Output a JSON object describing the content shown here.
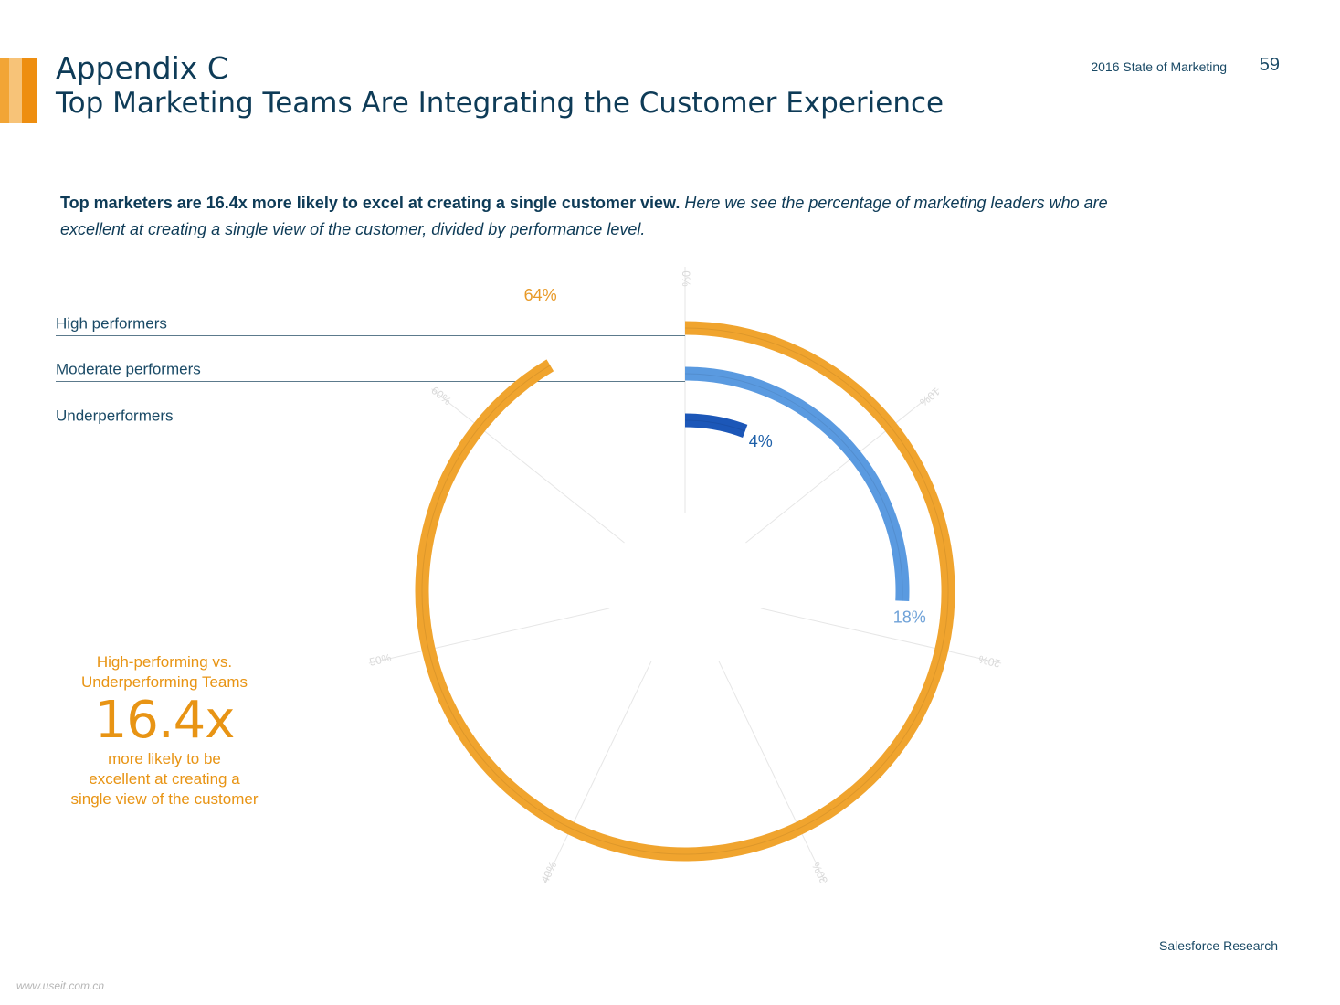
{
  "header": {
    "title": "Appendix C",
    "subtitle": "Top Marketing Teams Are Integrating the Customer Experience",
    "report_name": "2016 State of Marketing",
    "page_number": "59"
  },
  "intro": {
    "bold": "Top marketers are 16.4x more likely to excel at creating a single customer view.",
    "italic": "Here we see the percentage of marketing leaders who are excellent at creating a single view of the customer, divided by performance level."
  },
  "callout": {
    "heading_line1": "High-performing vs.",
    "heading_line2": "Underperforming Teams",
    "big_value": "16.4x",
    "desc_line1": "more likely to be",
    "desc_line2": "excellent at creating a",
    "desc_line3": "single view of the customer"
  },
  "chart_data": {
    "type": "radial-bar",
    "axis_ticks": [
      "0%",
      "10%",
      "20%",
      "30%",
      "40%",
      "50%",
      "60%"
    ],
    "axis_range": [
      0,
      70
    ],
    "categories": [
      "High performers",
      "Moderate performers",
      "Underperformers"
    ],
    "values": [
      64,
      18,
      4
    ],
    "value_labels": [
      "64%",
      "18%",
      "4%"
    ],
    "colors": [
      "#f0a42e",
      "#5a9ae0",
      "#1c57b8"
    ],
    "label_colors": [
      "#e89a28",
      "#6fa2d8",
      "#1d5fa8"
    ]
  },
  "footer": {
    "source": "Salesforce Research",
    "watermark": "www.useit.com.cn"
  }
}
